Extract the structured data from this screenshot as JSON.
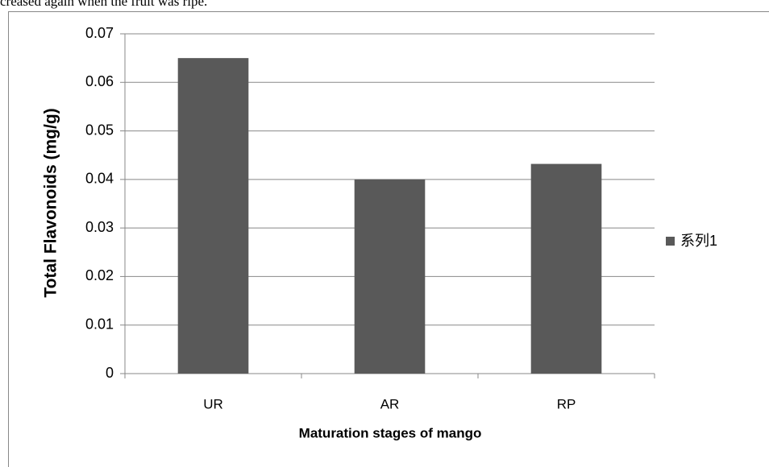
{
  "context_text": "creased again when the fruit was ripe.",
  "chart_data": {
    "type": "bar",
    "categories": [
      "UR",
      "AR",
      "RP"
    ],
    "values": [
      0.065,
      0.04,
      0.0432
    ],
    "color": "#595959",
    "series_name": "系列1",
    "x_label": "Maturation stages of mango",
    "y_label": "Total Flavonoids (mg/g)",
    "ylim": [
      0,
      0.07
    ],
    "yticks": [
      0,
      0.01,
      0.02,
      0.03,
      0.04,
      0.05,
      0.06,
      0.07
    ],
    "grid": true,
    "legend": "right"
  }
}
